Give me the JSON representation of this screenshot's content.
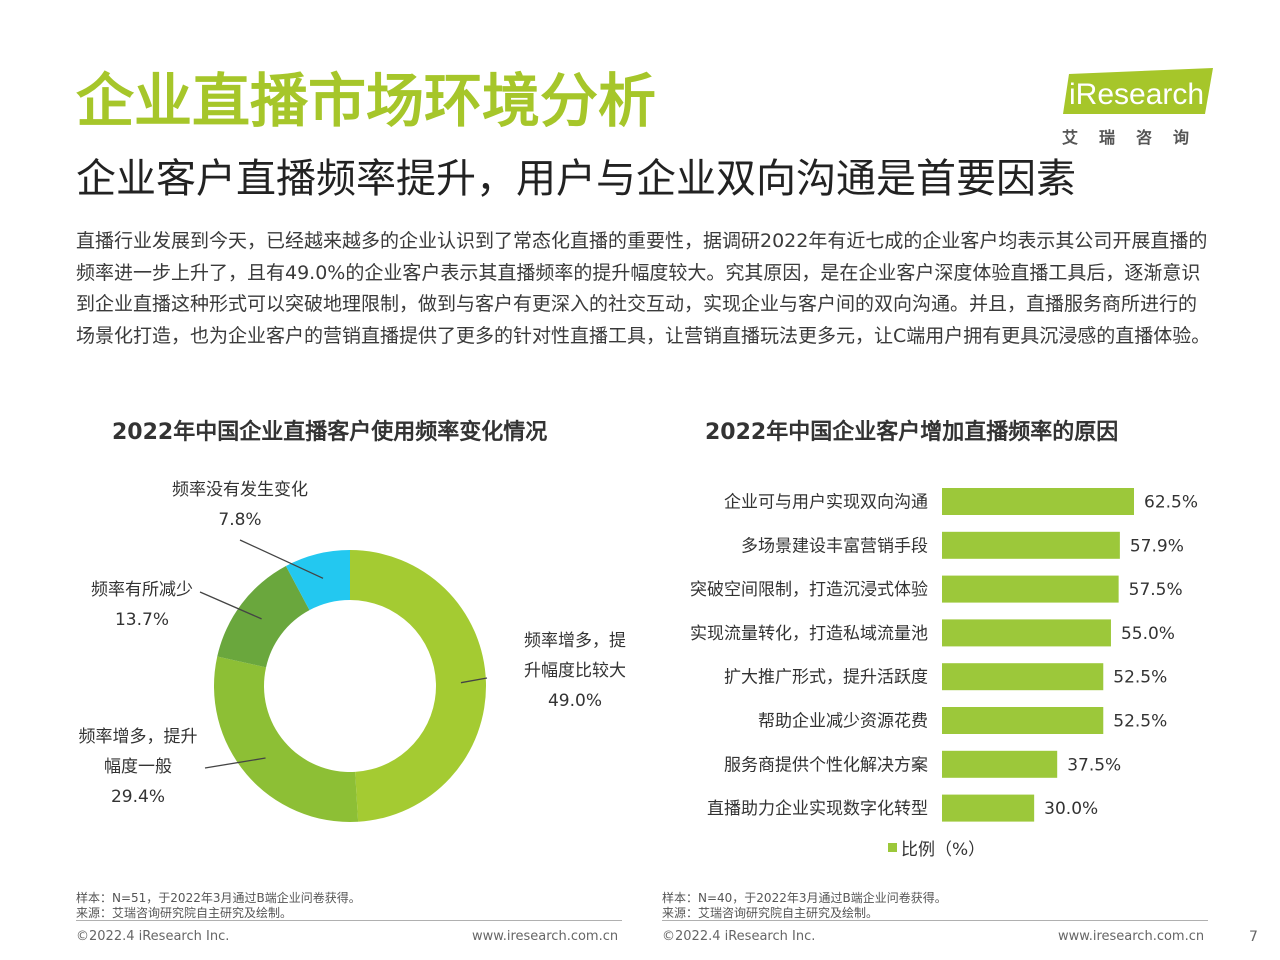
{
  "header": {
    "title": "企业直播市场环境分析",
    "subtitle": "企业客户直播频率提升，用户与企业双向沟通是首要因素",
    "body": "直播行业发展到今天，已经越来越多的企业认识到了常态化直播的重要性，据调研2022年有近七成的企业客户均表示其公司开展直播的频率进一步上升了，且有49.0%的企业客户表示其直播频率的提升幅度较大。究其原因，是在企业客户深度体验直播工具后，逐渐意识到企业直播这种形式可以突破地理限制，做到与客户有更深入的社交互动，实现企业与客户间的双向沟通。并且，直播服务商所进行的场景化打造，也为企业客户的营销直播提供了更多的针对性直播工具，让营销直播玩法更多元，让C端用户拥有更具沉浸感的直播体验。"
  },
  "logo": {
    "text": "iResearch",
    "cn": "艾瑞咨询"
  },
  "colors": {
    "accent": "#a6c62a",
    "bar": "#9cc83a",
    "green_dark": "#72ad2e",
    "cyan": "#23c8f0"
  },
  "chart_data": [
    {
      "type": "pie",
      "title": "2022年中国企业直播客户使用频率变化情况",
      "slices": [
        {
          "label_lines": [
            "频率增多，提",
            "升幅度比较大"
          ],
          "value": 49.0,
          "value_text": "49.0%",
          "color": "#a4cb32"
        },
        {
          "label_lines": [
            "频率增多，提升",
            "幅度一般"
          ],
          "value": 29.4,
          "value_text": "29.4%",
          "color": "#8dbf35"
        },
        {
          "label_lines": [
            "频率有所减少"
          ],
          "value": 13.7,
          "value_text": "13.7%",
          "color": "#6aa73d"
        },
        {
          "label_lines": [
            "频率没有发生变化"
          ],
          "value": 7.8,
          "value_text": "7.8%",
          "color": "#23c8f0"
        }
      ],
      "footnote_sample": "样本：N=51，于2022年3月通过B端企业问卷获得。",
      "footnote_source": "来源：艾瑞咨询研究院自主研究及绘制。"
    },
    {
      "type": "bar",
      "title": "2022年中国企业客户增加直播频率的原因",
      "categories": [
        "企业可与用户实现双向沟通",
        "多场景建设丰富营销手段",
        "突破空间限制，打造沉浸式体验",
        "实现流量转化，打造私域流量池",
        "扩大推广形式，提升活跃度",
        "帮助企业减少资源花费",
        "服务商提供个性化解决方案",
        "直播助力企业实现数字化转型"
      ],
      "values": [
        62.5,
        57.9,
        57.5,
        55.0,
        52.5,
        52.5,
        37.5,
        30.0
      ],
      "value_labels": [
        "62.5%",
        "57.9%",
        "57.5%",
        "55.0%",
        "52.5%",
        "52.5%",
        "37.5%",
        "30.0%"
      ],
      "legend": "比例（%）",
      "xlim": [
        0,
        100
      ],
      "footnote_sample": "样本：N=40，于2022年3月通过B端企业问卷获得。",
      "footnote_source": "来源：艾瑞咨询研究院自主研究及绘制。"
    }
  ],
  "footer": {
    "copyright": "©2022.4 iResearch Inc.",
    "url": "www.iresearch.com.cn",
    "page": "7"
  }
}
